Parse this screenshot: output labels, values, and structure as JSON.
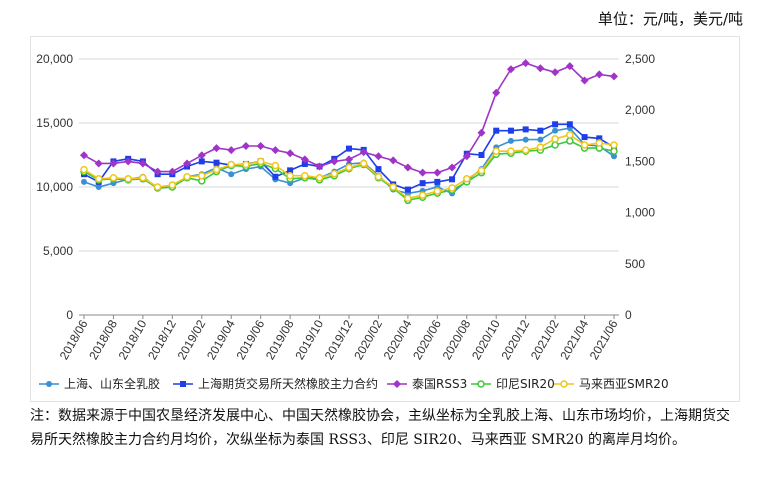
{
  "unit_label": "单位：元/吨，美元/吨",
  "note": "注：数据来源于中国农垦经济发展中心、中国天然橡胶协会，主纵坐标为全乳胶上海、山东市场均价，上海期货交易所天然橡胶主力合约月均价，次纵坐标为泰国 RSS3、印尼 SIR20、马来西亚 SMR20 的离岸月均价。",
  "chart_data": {
    "type": "line",
    "y_left": {
      "min": 0,
      "max": 20000,
      "ticks": [
        "0",
        "5,000",
        "10,000",
        "15,000",
        "20,000"
      ]
    },
    "y_right": {
      "min": 0,
      "max": 2500,
      "ticks": [
        "0",
        "500",
        "1,000",
        "1,500",
        "2,000",
        "2,500"
      ]
    },
    "x_tick_labels": [
      "2018/06",
      "2018/08",
      "2018/10",
      "2018/12",
      "2019/02",
      "2019/04",
      "2019/06",
      "2019/08",
      "2019/10",
      "2019/12",
      "2020/02",
      "2020/04",
      "2020/06",
      "2020/08",
      "2020/10",
      "2020/12",
      "2021/02",
      "2021/04",
      "2021/06"
    ],
    "x": [
      "2018/06",
      "2018/07",
      "2018/08",
      "2018/09",
      "2018/10",
      "2018/11",
      "2018/12",
      "2019/01",
      "2019/02",
      "2019/03",
      "2019/04",
      "2019/05",
      "2019/06",
      "2019/07",
      "2019/08",
      "2019/09",
      "2019/10",
      "2019/11",
      "2019/12",
      "2020/01",
      "2020/02",
      "2020/03",
      "2020/04",
      "2020/05",
      "2020/06",
      "2020/07",
      "2020/08",
      "2020/09",
      "2020/10",
      "2020/11",
      "2020/12",
      "2021/01",
      "2021/02",
      "2021/03",
      "2021/04",
      "2021/05",
      "2021/06"
    ],
    "grid": "horizontal",
    "legend_position": "bottom",
    "series": [
      {
        "name": "上海、山东全乳胶",
        "axis": "left",
        "color": "#3a8fd6",
        "marker": "circle",
        "values": [
          10400,
          10000,
          10300,
          10600,
          10800,
          9900,
          10000,
          10800,
          11000,
          11500,
          11000,
          11400,
          11600,
          10600,
          10300,
          10700,
          10700,
          11200,
          11800,
          11900,
          10900,
          9800,
          9500,
          9700,
          10000,
          9500,
          10500,
          11400,
          13100,
          13600,
          13700,
          13700,
          14400,
          14600,
          13300,
          13200,
          12400
        ]
      },
      {
        "name": "上海期货交易所天然橡胶主力合约",
        "axis": "left",
        "color": "#1e3ee8",
        "marker": "square",
        "values": [
          11000,
          10400,
          12000,
          12200,
          12000,
          11000,
          11000,
          11600,
          12000,
          11900,
          11700,
          11800,
          12000,
          10800,
          11300,
          11800,
          11600,
          12200,
          13000,
          12900,
          11400,
          10200,
          9800,
          10300,
          10400,
          10600,
          12600,
          12500,
          14400,
          14400,
          14500,
          14400,
          14900,
          14900,
          13900,
          13800,
          13100
        ]
      },
      {
        "name": "泰国RSS3",
        "axis": "right",
        "color": "#a033c8",
        "marker": "diamond",
        "values": [
          1560,
          1480,
          1480,
          1500,
          1480,
          1400,
          1400,
          1480,
          1560,
          1630,
          1610,
          1650,
          1650,
          1610,
          1580,
          1520,
          1450,
          1500,
          1520,
          1590,
          1550,
          1510,
          1440,
          1390,
          1390,
          1440,
          1550,
          1780,
          2170,
          2400,
          2460,
          2410,
          2370,
          2430,
          2290,
          2350,
          2330
        ]
      },
      {
        "name": "印尼SIR20",
        "axis": "right",
        "color": "#3cc83c",
        "marker": "circle-open",
        "values": [
          1400,
          1320,
          1330,
          1320,
          1330,
          1240,
          1250,
          1340,
          1310,
          1400,
          1460,
          1450,
          1480,
          1430,
          1330,
          1340,
          1320,
          1360,
          1430,
          1470,
          1340,
          1240,
          1120,
          1150,
          1190,
          1220,
          1300,
          1390,
          1570,
          1580,
          1600,
          1610,
          1660,
          1700,
          1630,
          1630,
          1600
        ]
      },
      {
        "name": "马来西亚SMR20",
        "axis": "right",
        "color": "#f0c61a",
        "marker": "circle-open",
        "values": [
          1420,
          1330,
          1340,
          1330,
          1340,
          1250,
          1270,
          1350,
          1360,
          1420,
          1470,
          1470,
          1500,
          1460,
          1360,
          1360,
          1340,
          1380,
          1440,
          1480,
          1350,
          1250,
          1140,
          1170,
          1210,
          1240,
          1330,
          1410,
          1600,
          1600,
          1610,
          1640,
          1720,
          1760,
          1660,
          1680,
          1660
        ]
      }
    ]
  }
}
